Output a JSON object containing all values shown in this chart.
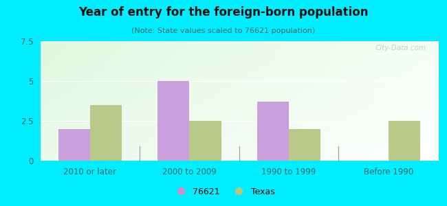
{
  "title": "Year of entry for the foreign-born population",
  "subtitle": "(Note: State values scaled to 76621 population)",
  "categories": [
    "2010 or later",
    "2000 to 2009",
    "1990 to 1999",
    "Before 1990"
  ],
  "values_76621": [
    2.0,
    5.0,
    3.7,
    0.0
  ],
  "values_texas": [
    3.5,
    2.5,
    2.0,
    2.5
  ],
  "bar_color_76621": "#c9a0dc",
  "bar_color_texas": "#b8c98a",
  "legend_color_76621": "#d688c8",
  "legend_color_texas": "#b8c878",
  "ylim": [
    0,
    7.5
  ],
  "yticks": [
    0,
    2.5,
    5.0,
    7.5
  ],
  "background_outer": "#00eeff",
  "bar_width": 0.32,
  "watermark": "City-Data.com"
}
